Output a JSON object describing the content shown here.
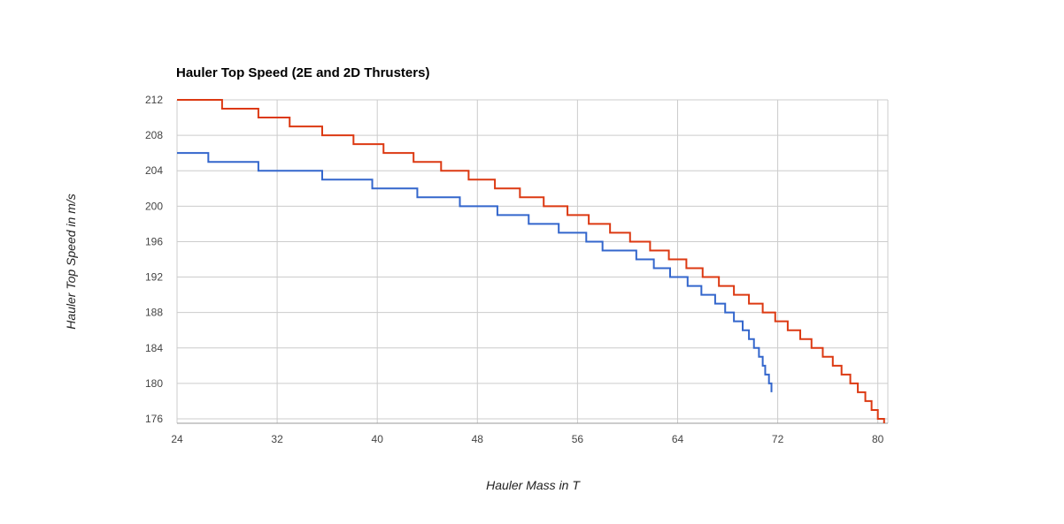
{
  "chart_data": {
    "type": "line",
    "title": "Hauler Top Speed (2E and 2D Thrusters)",
    "xlabel": "Hauler Mass in T",
    "ylabel": "Hauler Top Speed in m/s",
    "xlim": [
      24,
      80.8
    ],
    "ylim": [
      175.5,
      212
    ],
    "xticks": [
      24,
      32,
      40,
      48,
      56,
      64,
      72,
      80
    ],
    "yticks": [
      176,
      180,
      184,
      188,
      192,
      196,
      200,
      204,
      208,
      212
    ],
    "grid": true,
    "legend": "none",
    "step": true,
    "series": [
      {
        "color": "#dc3912",
        "points": [
          [
            24,
            212
          ],
          [
            27.6,
            211
          ],
          [
            30.5,
            210
          ],
          [
            33.0,
            209
          ],
          [
            35.6,
            208
          ],
          [
            38.1,
            207
          ],
          [
            40.5,
            206
          ],
          [
            42.9,
            205
          ],
          [
            45.1,
            204
          ],
          [
            47.3,
            203
          ],
          [
            49.4,
            202
          ],
          [
            51.4,
            201
          ],
          [
            53.3,
            200
          ],
          [
            55.2,
            199
          ],
          [
            56.9,
            198
          ],
          [
            58.6,
            197
          ],
          [
            60.2,
            196
          ],
          [
            61.8,
            195
          ],
          [
            63.3,
            194
          ],
          [
            64.7,
            193
          ],
          [
            66.0,
            192
          ],
          [
            67.3,
            191
          ],
          [
            68.5,
            190
          ],
          [
            69.7,
            189
          ],
          [
            70.8,
            188
          ],
          [
            71.8,
            187
          ],
          [
            72.8,
            186
          ],
          [
            73.8,
            185
          ],
          [
            74.7,
            184
          ],
          [
            75.6,
            183
          ],
          [
            76.4,
            182
          ],
          [
            77.1,
            181
          ],
          [
            77.8,
            180
          ],
          [
            78.4,
            179
          ],
          [
            79.0,
            178
          ],
          [
            79.5,
            177
          ],
          [
            80.0,
            176
          ],
          [
            80.5,
            175.5
          ]
        ]
      },
      {
        "color": "#3366cc",
        "points": [
          [
            24,
            206
          ],
          [
            26.5,
            205
          ],
          [
            30.5,
            204
          ],
          [
            35.6,
            203
          ],
          [
            39.6,
            202
          ],
          [
            43.2,
            201
          ],
          [
            46.6,
            200
          ],
          [
            49.6,
            199
          ],
          [
            52.1,
            198
          ],
          [
            54.5,
            197
          ],
          [
            56.7,
            196
          ],
          [
            58.0,
            195
          ],
          [
            60.7,
            194
          ],
          [
            62.1,
            193
          ],
          [
            63.4,
            192
          ],
          [
            64.8,
            191
          ],
          [
            65.9,
            190
          ],
          [
            67.0,
            189
          ],
          [
            67.8,
            188
          ],
          [
            68.5,
            187
          ],
          [
            69.2,
            186
          ],
          [
            69.7,
            185
          ],
          [
            70.1,
            184
          ],
          [
            70.5,
            183
          ],
          [
            70.8,
            182
          ],
          [
            71.0,
            181
          ],
          [
            71.3,
            180
          ],
          [
            71.5,
            179
          ]
        ]
      }
    ]
  }
}
